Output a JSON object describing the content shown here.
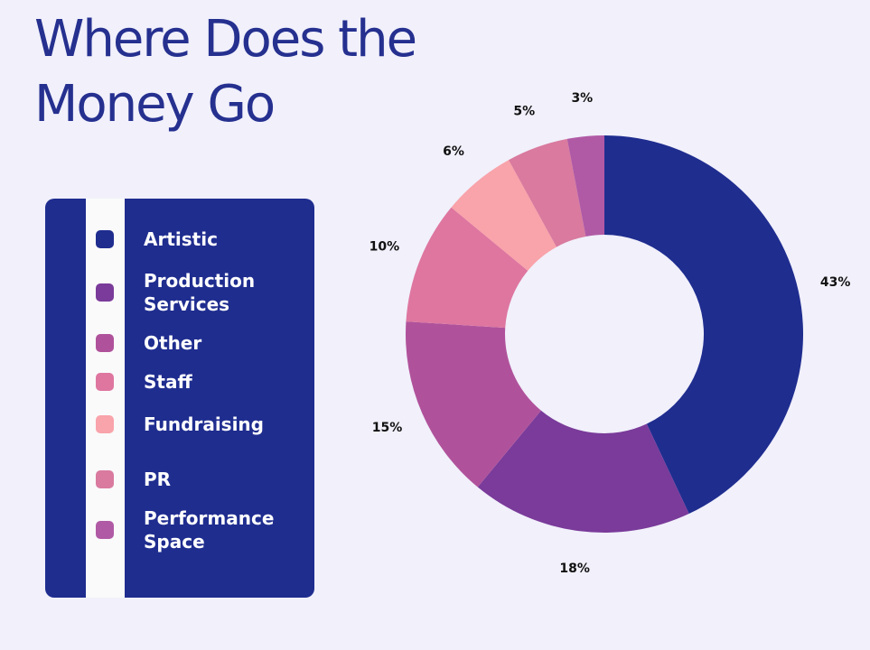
{
  "chart_data": {
    "type": "donut",
    "title": "Where Does the Money Go",
    "categories": [
      "Artistic",
      "Production Services",
      "Other",
      "Staff",
      "Fundraising",
      "PR",
      "Performance Space"
    ],
    "values": [
      43,
      18,
      15,
      10,
      6,
      5,
      3
    ],
    "value_labels": [
      "43%",
      "18%",
      "15%",
      "10%",
      "6%",
      "5%",
      "3%"
    ],
    "colors": [
      "#1f2d8f",
      "#7a3b9a",
      "#b0529b",
      "#de76a0",
      "#f9a3aa",
      "#d97a9e",
      "#b05aa5"
    ]
  }
}
